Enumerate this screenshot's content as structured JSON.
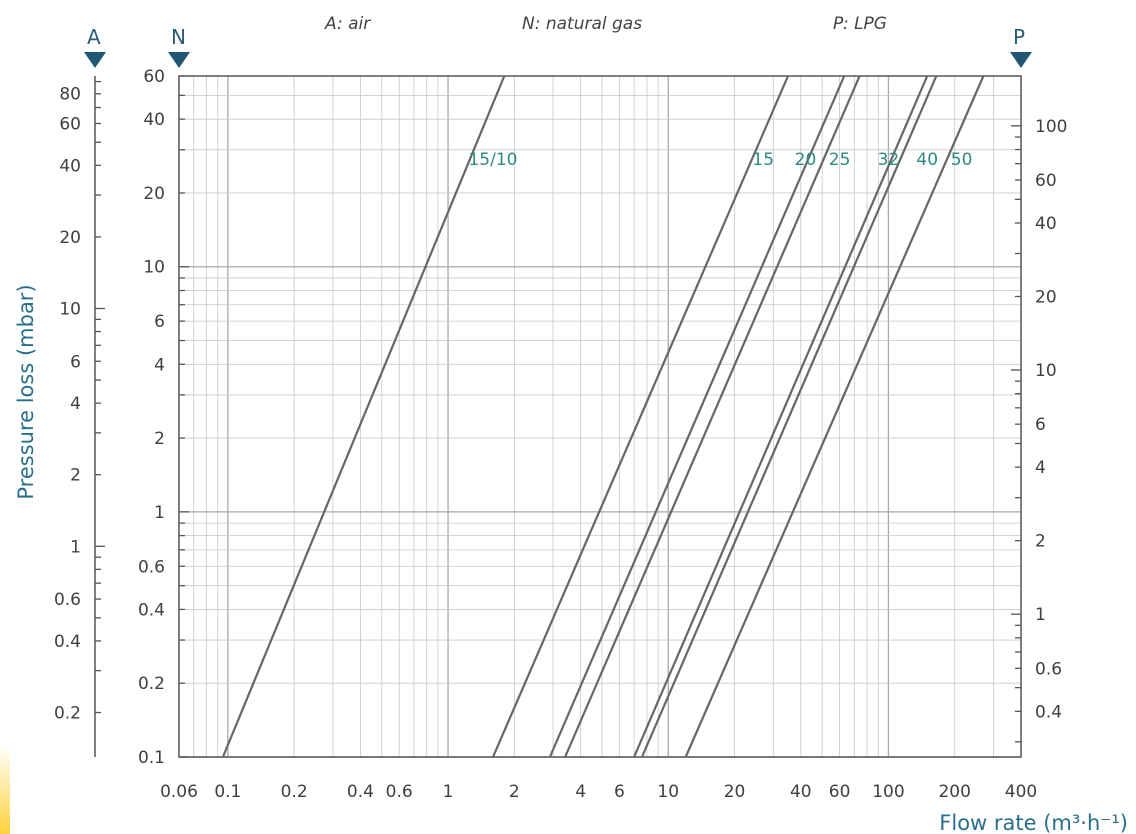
{
  "chart_data": {
    "type": "line",
    "xscale": "log",
    "yscale": "log",
    "xlabel": "Flow rate (m³·h⁻¹)",
    "ylabel": "Pressure loss  (mbar)",
    "xlim": [
      0.06,
      400
    ],
    "x_ticks": [
      "0.06",
      "0.1",
      "0.2",
      "0.4",
      "0.6",
      "1",
      "2",
      "4",
      "6",
      "10",
      "20",
      "40",
      "60",
      "100",
      "200",
      "400"
    ],
    "scales": {
      "A": {
        "letter": "A",
        "label": "A: air",
        "ylim": [
          0.13,
          95
        ],
        "ticks": [
          "80",
          "60",
          "40",
          "20",
          "10",
          "6",
          "4",
          "2",
          "1",
          "0.6",
          "0.4",
          "0.2"
        ]
      },
      "N": {
        "letter": "N",
        "label": "N: natural gas",
        "ylim": [
          0.1,
          60
        ],
        "ticks": [
          "60",
          "40",
          "20",
          "10",
          "6",
          "4",
          "2",
          "1",
          "0.6",
          "0.4",
          "0.2",
          "0.1"
        ]
      },
      "P": {
        "letter": "P",
        "label": "P: LPG",
        "ylim": [
          0.26,
          160
        ],
        "ticks": [
          "100",
          "60",
          "40",
          "20",
          "10",
          "6",
          "4",
          "2",
          "1",
          "0.6",
          "0.4"
        ]
      }
    },
    "series": [
      {
        "name": "15/10",
        "points": [
          [
            0.095,
            0.1
          ],
          [
            1.8,
            60
          ]
        ]
      },
      {
        "name": "15",
        "points": [
          [
            1.6,
            0.1
          ],
          [
            35,
            60
          ]
        ]
      },
      {
        "name": "20",
        "points": [
          [
            2.9,
            0.1
          ],
          [
            63,
            60
          ]
        ]
      },
      {
        "name": "25",
        "points": [
          [
            3.4,
            0.1
          ],
          [
            74,
            60
          ]
        ]
      },
      {
        "name": "32",
        "points": [
          [
            7.0,
            0.1
          ],
          [
            150,
            60
          ]
        ]
      },
      {
        "name": "40",
        "points": [
          [
            7.6,
            0.1
          ],
          [
            165,
            60
          ]
        ]
      },
      {
        "name": "50",
        "points": [
          [
            12,
            0.1
          ],
          [
            270,
            60
          ]
        ]
      }
    ],
    "series_labels": [
      {
        "text": "15/10",
        "x": 1.6,
        "y": 26
      },
      {
        "text": "15",
        "x": 27,
        "y": 26
      },
      {
        "text": "20",
        "x": 42,
        "y": 26
      },
      {
        "text": "25",
        "x": 60,
        "y": 26
      },
      {
        "text": "32",
        "x": 100,
        "y": 26
      },
      {
        "text": "40",
        "x": 150,
        "y": 26
      },
      {
        "text": "50",
        "x": 215,
        "y": 26
      }
    ],
    "grid": true,
    "colors": {
      "line": "#666666",
      "grid": "#c8c8c8",
      "label": "#2c8a86",
      "axis_title": "#2a6f8a",
      "marker": "#1f5673"
    }
  }
}
